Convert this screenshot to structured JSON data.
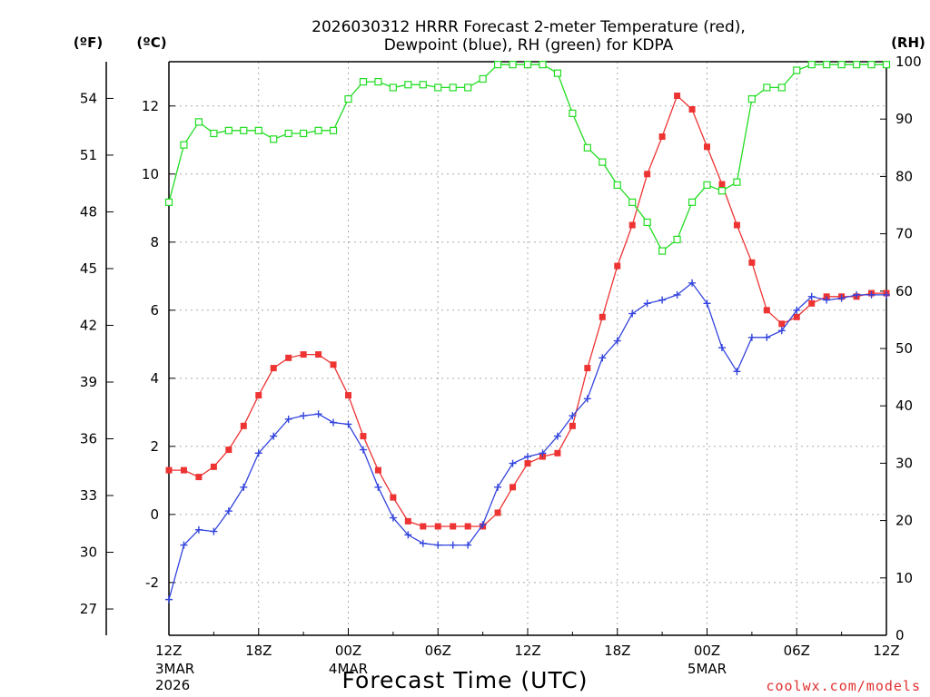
{
  "chart_data": {
    "type": "line",
    "title_line1": "2026030312 HRRR Forecast 2-meter Temperature (red),",
    "title_line2": "Dewpoint (blue), RH (green) for KDPA",
    "xlabel": "Forecast Time (UTC)",
    "credit": "coolwx.com/models",
    "unit_f": "(ºF)",
    "unit_c": "(ºC)",
    "unit_rh": "(RH)",
    "x_hours_range": [
      0,
      48
    ],
    "ylim_c": [
      -3.55,
      13.3
    ],
    "ylim_rh": [
      0,
      100
    ],
    "f_ticks": [
      "27",
      "30",
      "33",
      "36",
      "39",
      "42",
      "45",
      "48",
      "51",
      "54"
    ],
    "c_ticks": [
      "-2",
      "0",
      "2",
      "4",
      "6",
      "8",
      "10",
      "12"
    ],
    "rh_ticks": [
      "0",
      "10",
      "20",
      "30",
      "40",
      "50",
      "60",
      "70",
      "80",
      "90",
      "100"
    ],
    "x_ticks": [
      {
        "hour": 0,
        "label": "12Z",
        "sub1": "3MAR",
        "sub2": "2026"
      },
      {
        "hour": 6,
        "label": "18Z",
        "sub1": "",
        "sub2": ""
      },
      {
        "hour": 12,
        "label": "00Z",
        "sub1": "4MAR",
        "sub2": ""
      },
      {
        "hour": 18,
        "label": "06Z",
        "sub1": "",
        "sub2": ""
      },
      {
        "hour": 24,
        "label": "12Z",
        "sub1": "",
        "sub2": ""
      },
      {
        "hour": 30,
        "label": "18Z",
        "sub1": "",
        "sub2": ""
      },
      {
        "hour": 36,
        "label": "00Z",
        "sub1": "5MAR",
        "sub2": ""
      },
      {
        "hour": 42,
        "label": "06Z",
        "sub1": "",
        "sub2": ""
      },
      {
        "hour": 48,
        "label": "12Z",
        "sub1": "",
        "sub2": ""
      }
    ],
    "series": [
      {
        "name": "Temperature",
        "color": "#ee3333",
        "marker": "filled-square",
        "values_c": [
          1.3,
          1.3,
          1.1,
          1.4,
          1.9,
          2.6,
          3.5,
          4.3,
          4.6,
          4.7,
          4.7,
          4.4,
          3.5,
          2.3,
          1.3,
          0.5,
          -0.2,
          -0.35,
          -0.35,
          -0.35,
          -0.35,
          -0.35,
          0.05,
          0.8,
          1.5,
          1.7,
          1.8,
          2.6,
          4.3,
          5.8,
          7.3,
          8.5,
          10.0,
          11.1,
          12.3,
          11.9,
          10.8,
          9.7,
          8.5,
          7.4,
          6.0,
          5.6,
          5.8,
          6.2,
          6.4,
          6.4,
          6.4,
          6.5,
          6.5
        ]
      },
      {
        "name": "Dewpoint",
        "color": "#3344dd",
        "marker": "plus",
        "values_c": [
          -2.5,
          -0.9,
          -0.45,
          -0.5,
          0.1,
          0.8,
          1.8,
          2.3,
          2.8,
          2.9,
          2.95,
          2.7,
          2.65,
          1.9,
          0.8,
          -0.1,
          -0.6,
          -0.85,
          -0.9,
          -0.9,
          -0.9,
          -0.3,
          0.8,
          1.5,
          1.7,
          1.8,
          2.3,
          2.9,
          3.4,
          4.6,
          5.1,
          5.9,
          6.2,
          6.3,
          6.45,
          6.8,
          6.2,
          4.9,
          4.2,
          5.2,
          5.2,
          5.4,
          6.0,
          6.4,
          6.3,
          6.35,
          6.45,
          6.45,
          6.45
        ]
      },
      {
        "name": "RH",
        "color": "#22dd22",
        "marker": "open-square",
        "values_rh": [
          75.5,
          85.5,
          89.5,
          87.5,
          88,
          88,
          88,
          86.5,
          87.5,
          87.5,
          88,
          88,
          93.5,
          96.5,
          96.5,
          95.5,
          96,
          96,
          95.5,
          95.5,
          95.5,
          97,
          99.5,
          99.5,
          99.5,
          99.5,
          98,
          91,
          85,
          82.5,
          78.5,
          75.5,
          72,
          67,
          69,
          75.5,
          78.5,
          77.5,
          79,
          93.5,
          95.5,
          95.5,
          98.5,
          99.5,
          99.5,
          99.5,
          99.5,
          99.5,
          99.5
        ]
      }
    ]
  }
}
